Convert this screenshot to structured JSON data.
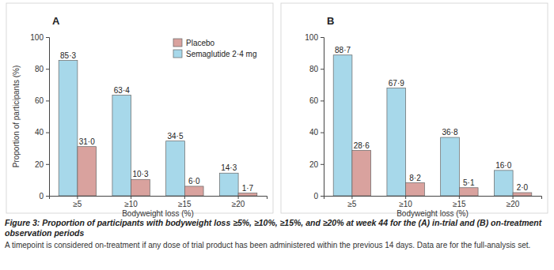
{
  "chart_data": [
    {
      "type": "bar",
      "title": "A",
      "y_label": "Proportion of participants (%)",
      "x_label": "Bodyweight loss (%)",
      "categories": [
        "≥5",
        "≥10",
        "≥15",
        "≥20"
      ],
      "series": [
        {
          "name": "Semaglutide 2·4 mg",
          "color": "#a7d8ea",
          "values": [
            85.3,
            63.4,
            34.5,
            14.3
          ],
          "value_labels": [
            "85·3",
            "63·4",
            "34·5",
            "14·3"
          ]
        },
        {
          "name": "Placebo",
          "color": "#d9a29e",
          "values": [
            31.0,
            10.3,
            6.0,
            1.7
          ],
          "value_labels": [
            "31·0",
            "10·3",
            "6·0",
            "1·7"
          ]
        }
      ],
      "ylim": [
        0,
        100
      ],
      "yticks": [
        0,
        20,
        40,
        60,
        80,
        100
      ],
      "data_labels": true,
      "grid": false,
      "legend": "top-right"
    },
    {
      "type": "bar",
      "title": "B",
      "x_label": "Bodyweight loss (%)",
      "categories": [
        "≥5",
        "≥10",
        "≥15",
        "≥20"
      ],
      "series": [
        {
          "color": "#a7d8ea",
          "values": [
            88.7,
            67.9,
            36.8,
            16.0
          ],
          "value_labels": [
            "88·7",
            "67·9",
            "36·8",
            "16·0"
          ]
        },
        {
          "color": "#d9a29e",
          "values": [
            28.6,
            8.2,
            5.1,
            2.0
          ],
          "value_labels": [
            "28·6",
            "8·2",
            "5·1",
            "2·0"
          ]
        }
      ],
      "ylim": [
        0,
        100
      ],
      "yticks": [
        0,
        20,
        40,
        60,
        80,
        100
      ],
      "data_labels": true,
      "grid": false
    }
  ],
  "caption": {
    "title": "Figure 3: Proportion of participants with bodyweight loss ≥5%, ≥10%, ≥15%, and ≥20% at week 44 for the (A) in-trial and (B) on-treatment observation periods",
    "note": "A timepoint is considered on-treatment if any dose of trial product has been administered within the previous 14 days. Data are for the full-analysis set."
  }
}
